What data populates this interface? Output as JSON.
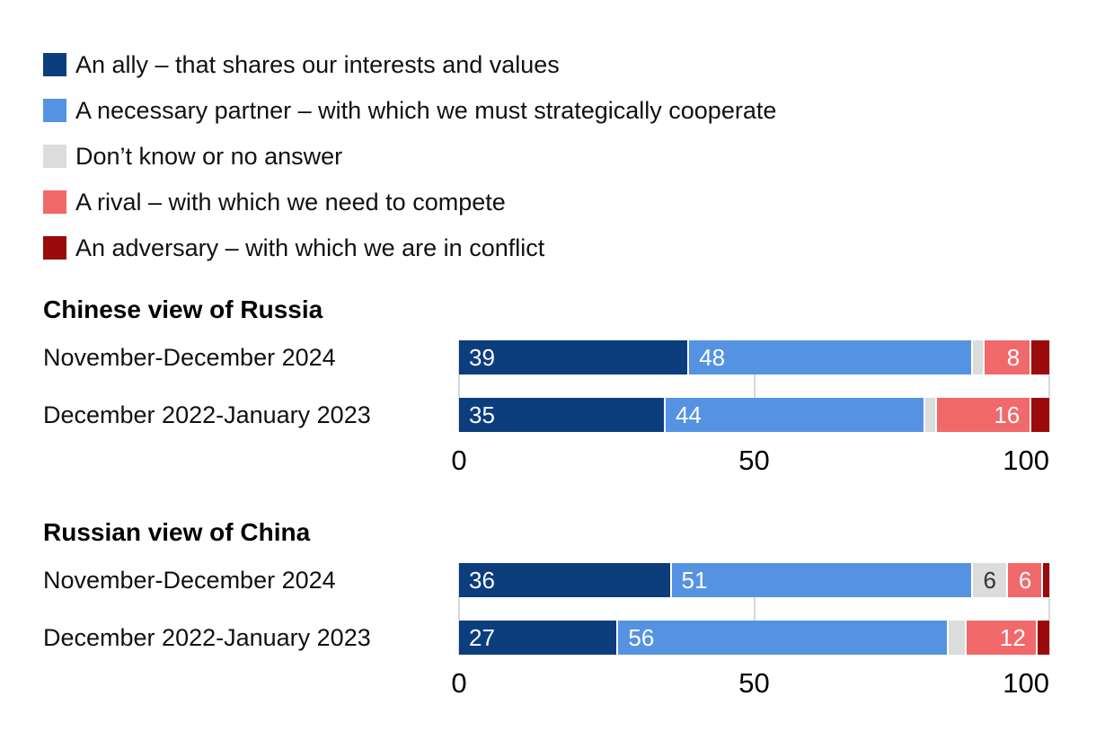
{
  "colors": {
    "ally": "#0c3d7d",
    "partner": "#5593e2",
    "dont_know": "#dcdcdc",
    "rival": "#f1696a",
    "adversary": "#9b0a0c",
    "gridline": "#d9d9d9",
    "value_label_light": "#ffffff",
    "value_label_dark": "#333333",
    "text": "#111111"
  },
  "value_label_min": 6,
  "legend": {
    "items": [
      {
        "key": "ally",
        "icon": "ally-swatch",
        "label": "An ally – that shares our interests and values"
      },
      {
        "key": "partner",
        "icon": "partner-swatch",
        "label": "A necessary partner – with which we must strategically cooperate"
      },
      {
        "key": "dont_know",
        "icon": "dont-know-swatch",
        "label": "Don’t know or no answer"
      },
      {
        "key": "rival",
        "icon": "rival-swatch",
        "label": "A rival – with which we need to compete"
      },
      {
        "key": "adversary",
        "icon": "adversary-swatch",
        "label": "An adversary – with which we are in conflict"
      }
    ]
  },
  "chart_data": [
    {
      "type": "bar",
      "orientation": "horizontal",
      "stacked": true,
      "title": "Chinese view of Russia",
      "categories": [
        "November-December 2024",
        "December 2022-January 2023"
      ],
      "series": [
        {
          "key": "ally",
          "name": "An ally – that shares our interests and values",
          "values": [
            39,
            35
          ]
        },
        {
          "key": "partner",
          "name": "A necessary partner – with which we must strategically cooperate",
          "values": [
            48,
            44
          ]
        },
        {
          "key": "dont_know",
          "name": "Don’t know or no answer",
          "values": [
            2,
            2
          ]
        },
        {
          "key": "rival",
          "name": "A rival – with which we need to compete",
          "values": [
            8,
            16
          ]
        },
        {
          "key": "adversary",
          "name": "An adversary – with which we are in conflict",
          "values": [
            3,
            3
          ]
        }
      ],
      "xlim": [
        0,
        100
      ],
      "ticks": [
        0,
        50,
        100
      ],
      "grid": true,
      "legend_position": "top"
    },
    {
      "type": "bar",
      "orientation": "horizontal",
      "stacked": true,
      "title": "Russian view of China",
      "categories": [
        "November-December 2024",
        "December 2022-January 2023"
      ],
      "series": [
        {
          "key": "ally",
          "name": "An ally – that shares our interests and values",
          "values": [
            36,
            27
          ]
        },
        {
          "key": "partner",
          "name": "A necessary partner – with which we must strategically cooperate",
          "values": [
            51,
            56
          ]
        },
        {
          "key": "dont_know",
          "name": "Don’t know or no answer",
          "values": [
            6,
            3
          ]
        },
        {
          "key": "rival",
          "name": "A rival – with which we need to compete",
          "values": [
            6,
            12
          ]
        },
        {
          "key": "adversary",
          "name": "An adversary – with which we are in conflict",
          "values": [
            1,
            2
          ]
        }
      ],
      "xlim": [
        0,
        100
      ],
      "ticks": [
        0,
        50,
        100
      ],
      "grid": true,
      "legend_position": "top"
    }
  ]
}
